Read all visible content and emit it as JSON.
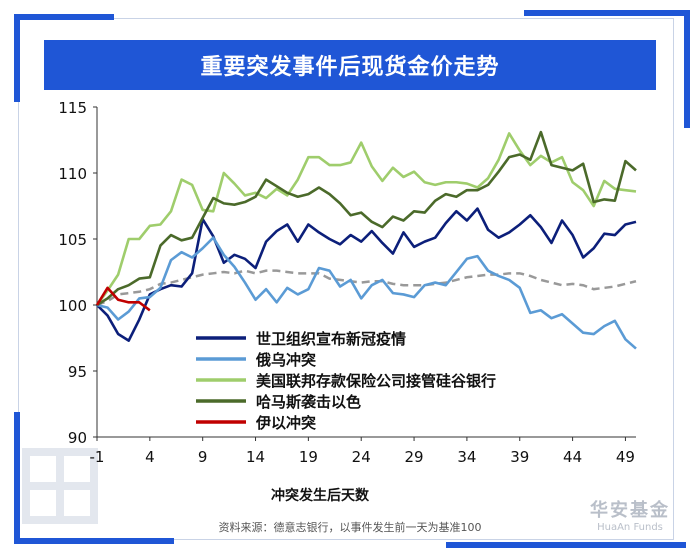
{
  "title": "重要突发事件后现货金价走势",
  "footnote": "资料来源：德意志银行，以事件发生前一天为基准100",
  "logo": {
    "cn": "华安基金",
    "en": "HuaAn Funds"
  },
  "chart_data": {
    "type": "line",
    "xlabel": "冲突发生后天数",
    "ylabel": "",
    "xlim": [
      -1,
      50
    ],
    "ylim": [
      90,
      115
    ],
    "xticks": [
      -1,
      4,
      9,
      14,
      19,
      24,
      29,
      34,
      39,
      44,
      49
    ],
    "yticks": [
      90,
      95,
      100,
      105,
      110,
      115
    ],
    "legend_position": "bottom-left",
    "baseline": {
      "value": 100,
      "label": "以事件发生前一天为基准100"
    },
    "series": [
      {
        "name": "世卫组织宣布新冠疫情",
        "color": "#0c1f7a",
        "x": [
          -1,
          0,
          1,
          2,
          3,
          4,
          5,
          6,
          7,
          8,
          9,
          10,
          11,
          12,
          13,
          14,
          15,
          16,
          17,
          18,
          19,
          20,
          21,
          22,
          23,
          24,
          25,
          26,
          27,
          28,
          29,
          30,
          31,
          32,
          33,
          34,
          35,
          36,
          37,
          38,
          39,
          40,
          41,
          42,
          43,
          44,
          45,
          46,
          47,
          48,
          49,
          50
        ],
        "values": [
          100,
          99.2,
          97.8,
          97.3,
          98.9,
          100.8,
          101.2,
          101.5,
          101.4,
          102.4,
          106.5,
          105.2,
          103.2,
          103.8,
          103.5,
          102.8,
          104.8,
          105.6,
          106.1,
          104.8,
          106.1,
          105.5,
          105,
          104.6,
          105.3,
          104.8,
          105.6,
          104.7,
          103.9,
          105.5,
          104.4,
          104.8,
          105.1,
          106.2,
          107.1,
          106.4,
          107.3,
          105.7,
          105.1,
          105.5,
          106.1,
          106.8,
          105.9,
          104.7,
          106.4,
          105.3,
          103.6,
          104.3,
          105.4,
          105.3,
          106.1,
          106.3
        ]
      },
      {
        "name": "俄乌冲突",
        "color": "#5b9bd5",
        "x": [
          -1,
          0,
          1,
          2,
          3,
          4,
          5,
          6,
          7,
          8,
          9,
          10,
          11,
          12,
          13,
          14,
          15,
          16,
          17,
          18,
          19,
          20,
          21,
          22,
          23,
          24,
          25,
          26,
          27,
          28,
          29,
          30,
          31,
          32,
          33,
          34,
          35,
          36,
          37,
          38,
          39,
          40,
          41,
          42,
          43,
          44,
          45,
          46,
          47,
          48,
          49,
          50
        ],
        "values": [
          100,
          99.8,
          98.9,
          99.5,
          100.5,
          100.6,
          101.3,
          103.4,
          104,
          103.6,
          104.3,
          105.1,
          103.8,
          102.9,
          101.7,
          100.4,
          101.2,
          100.2,
          101.3,
          100.8,
          101.2,
          102.8,
          102.6,
          101.4,
          101.9,
          100.5,
          101.5,
          101.9,
          100.9,
          100.8,
          100.6,
          101.5,
          101.7,
          101.5,
          102.5,
          103.5,
          103.7,
          102.6,
          102.2,
          101.9,
          101.3,
          99.4,
          99.6,
          99,
          99.3,
          98.6,
          97.9,
          97.8,
          98.4,
          98.8,
          97.4,
          96.7
        ]
      },
      {
        "name": "美国联邦存款保险公司接管硅谷银行",
        "color": "#9fcd6c",
        "x": [
          -1,
          0,
          1,
          2,
          3,
          4,
          5,
          6,
          7,
          8,
          9,
          10,
          11,
          12,
          13,
          14,
          15,
          16,
          17,
          18,
          19,
          20,
          21,
          22,
          23,
          24,
          25,
          26,
          27,
          28,
          29,
          30,
          31,
          32,
          33,
          34,
          35,
          36,
          37,
          38,
          39,
          40,
          41,
          42,
          43,
          44,
          45,
          46,
          47,
          48,
          49,
          50
        ],
        "values": [
          100,
          101.1,
          102.3,
          105,
          105,
          106,
          106.1,
          107.1,
          109.5,
          109.1,
          107.2,
          107.1,
          110,
          109.2,
          108.3,
          108.5,
          108.1,
          108.8,
          108.3,
          109.5,
          111.2,
          111.2,
          110.6,
          110.6,
          110.8,
          112.3,
          110.5,
          109.4,
          110.4,
          109.7,
          110.1,
          109.3,
          109.1,
          109.3,
          109.3,
          109.2,
          108.9,
          109.6,
          111,
          113,
          111.7,
          110.6,
          111.3,
          110.8,
          111.2,
          109.3,
          108.7,
          107.5,
          109.4,
          108.8,
          108.7,
          108.6
        ]
      },
      {
        "name": "哈马斯袭击以色",
        "color": "#4b6a2a",
        "x": [
          -1,
          0,
          1,
          2,
          3,
          4,
          5,
          6,
          7,
          8,
          9,
          10,
          11,
          12,
          13,
          14,
          15,
          16,
          17,
          18,
          19,
          20,
          21,
          22,
          23,
          24,
          25,
          26,
          27,
          28,
          29,
          30,
          31,
          32,
          33,
          34,
          35,
          36,
          37,
          38,
          39,
          40,
          41,
          42,
          43,
          44,
          45,
          46,
          47,
          48,
          49,
          50
        ],
        "values": [
          100,
          100.5,
          101.2,
          101.5,
          102,
          102.1,
          104.5,
          105.3,
          104.9,
          105.1,
          106.6,
          108.1,
          107.7,
          107.6,
          107.8,
          108.2,
          109.5,
          109,
          108.5,
          108.2,
          108.4,
          108.9,
          108.4,
          107.7,
          106.8,
          107,
          106.3,
          105.9,
          106.7,
          106.4,
          107.1,
          107,
          107.9,
          108.4,
          108.2,
          108.7,
          108.7,
          109.1,
          110.1,
          111.2,
          111.4,
          111,
          113.1,
          110.6,
          110.4,
          110.2,
          110.7,
          107.8,
          108,
          107.9,
          110.9,
          110.2
        ]
      },
      {
        "name": "伊以冲突",
        "color": "#c00000",
        "x": [
          -1,
          0,
          1,
          2,
          3,
          4
        ],
        "values": [
          100,
          101.3,
          100.4,
          100.2,
          100.2,
          99.6
        ]
      }
    ],
    "reference_line": {
      "color": "#999999",
      "style": "dashed",
      "x": [
        -1,
        0,
        1,
        2,
        3,
        4,
        5,
        6,
        7,
        8,
        9,
        10,
        11,
        12,
        13,
        14,
        15,
        16,
        17,
        18,
        19,
        20,
        21,
        22,
        23,
        24,
        25,
        26,
        27,
        28,
        29,
        30,
        31,
        32,
        33,
        34,
        35,
        36,
        37,
        38,
        39,
        40,
        41,
        42,
        43,
        44,
        45,
        46,
        47,
        48,
        49,
        50
      ],
      "values": [
        100,
        100.3,
        100.8,
        100.9,
        101,
        101.2,
        101.6,
        101.7,
        101.9,
        102.1,
        102.3,
        102.4,
        102.5,
        102.4,
        102.6,
        102.4,
        102.6,
        102.6,
        102.5,
        102.4,
        102.4,
        102.4,
        102,
        101.9,
        101.8,
        101.7,
        101.8,
        101.8,
        101.6,
        101.5,
        101.5,
        101.5,
        101.6,
        101.7,
        101.9,
        102.1,
        102.2,
        102.3,
        102.3,
        102.4,
        102.4,
        102.2,
        101.9,
        101.7,
        101.5,
        101.6,
        101.5,
        101.2,
        101.3,
        101.4,
        101.6,
        101.8
      ]
    }
  }
}
